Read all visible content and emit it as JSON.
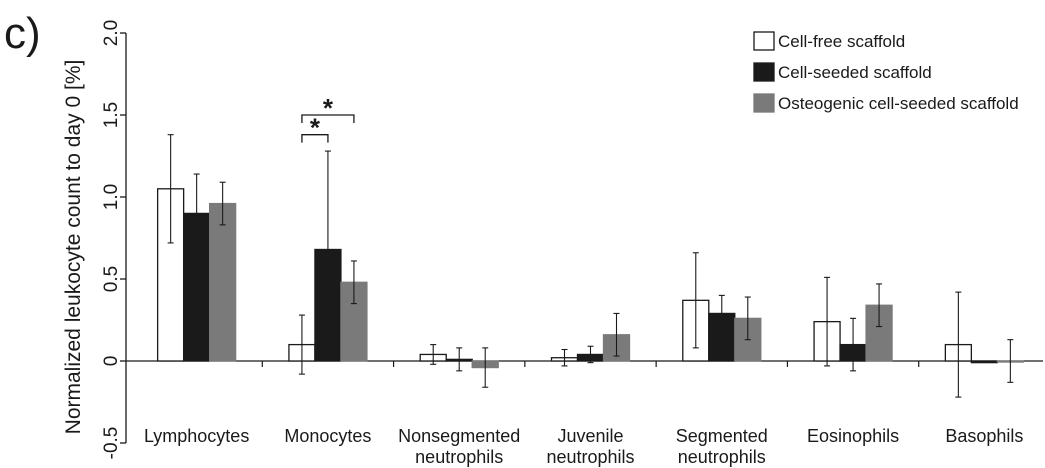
{
  "panel_label": "c)",
  "chart_data": {
    "type": "bar",
    "title": "",
    "xlabel": "",
    "ylabel": "Normalized leukocyte count to day 0 [%]",
    "ylim": [
      -0.5,
      2.0
    ],
    "yticks": [
      -0.5,
      0,
      0.5,
      1.0,
      1.5,
      2.0
    ],
    "ytick_labels": [
      "-0.5",
      "0",
      "0.5",
      "1.0",
      "1.5",
      "2.0"
    ],
    "categories": [
      [
        "Lymphocytes"
      ],
      [
        "Monocytes"
      ],
      [
        "Nonsegmented",
        "neutrophils"
      ],
      [
        "Juvenile",
        "neutrophils"
      ],
      [
        "Segmented",
        "neutrophils"
      ],
      [
        "Eosinophils"
      ],
      [
        "Basophils"
      ]
    ],
    "series": [
      {
        "name": "Cell-free scaffold",
        "color": "#ffffff",
        "stroke": "#1a1a1a",
        "values": [
          1.05,
          0.1,
          0.04,
          0.02,
          0.37,
          0.24,
          0.1
        ],
        "errors": [
          0.33,
          0.18,
          0.06,
          0.05,
          0.29,
          0.27,
          0.32
        ]
      },
      {
        "name": "Cell-seeded scaffold",
        "color": "#1a1a1a",
        "stroke": "#1a1a1a",
        "values": [
          0.9,
          0.68,
          0.01,
          0.04,
          0.29,
          0.1,
          -0.01
        ],
        "errors": [
          0.24,
          0.6,
          0.07,
          0.05,
          0.11,
          0.16,
          0.0
        ]
      },
      {
        "name": "Osteogenic cell-seeded scaffold",
        "color": "#7a7a7a",
        "stroke": "#7a7a7a",
        "values": [
          0.96,
          0.48,
          -0.04,
          0.16,
          0.26,
          0.34,
          0.0
        ],
        "errors": [
          0.13,
          0.13,
          0.12,
          0.13,
          0.13,
          0.13,
          0.13
        ]
      }
    ],
    "annotations": [
      {
        "text": "*",
        "category": "Monocytes",
        "from_series": 0,
        "to_series": 1,
        "level": 1.38
      },
      {
        "text": "*",
        "category": "Monocytes",
        "from_series": 0,
        "to_series": 2,
        "level": 1.5
      }
    ],
    "legend_position": "top-right",
    "grid": false
  }
}
